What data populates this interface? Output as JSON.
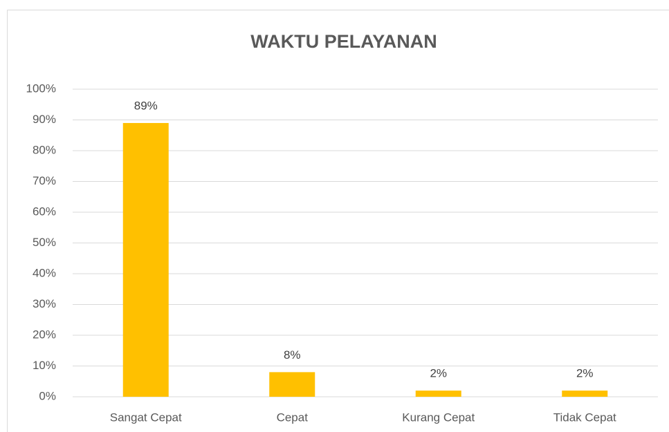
{
  "chart_data": {
    "type": "bar",
    "title": "WAKTU PELAYANAN",
    "categories": [
      "Sangat Cepat",
      "Cepat",
      "Kurang Cepat",
      "Tidak Cepat"
    ],
    "values": [
      89,
      8,
      2,
      2
    ],
    "value_labels": [
      "89%",
      "8%",
      "2%",
      "2%"
    ],
    "color": "#ffc000",
    "ylim": [
      0,
      100
    ],
    "yticks": [
      {
        "value": 0,
        "label": "0%"
      },
      {
        "value": 10,
        "label": "10%"
      },
      {
        "value": 20,
        "label": "20%"
      },
      {
        "value": 30,
        "label": "30%"
      },
      {
        "value": 40,
        "label": "40%"
      },
      {
        "value": 50,
        "label": "50%"
      },
      {
        "value": 60,
        "label": "60%"
      },
      {
        "value": 70,
        "label": "70%"
      },
      {
        "value": 80,
        "label": "80%"
      },
      {
        "value": 90,
        "label": "90%"
      },
      {
        "value": 100,
        "label": "100%"
      }
    ],
    "grid": true
  }
}
